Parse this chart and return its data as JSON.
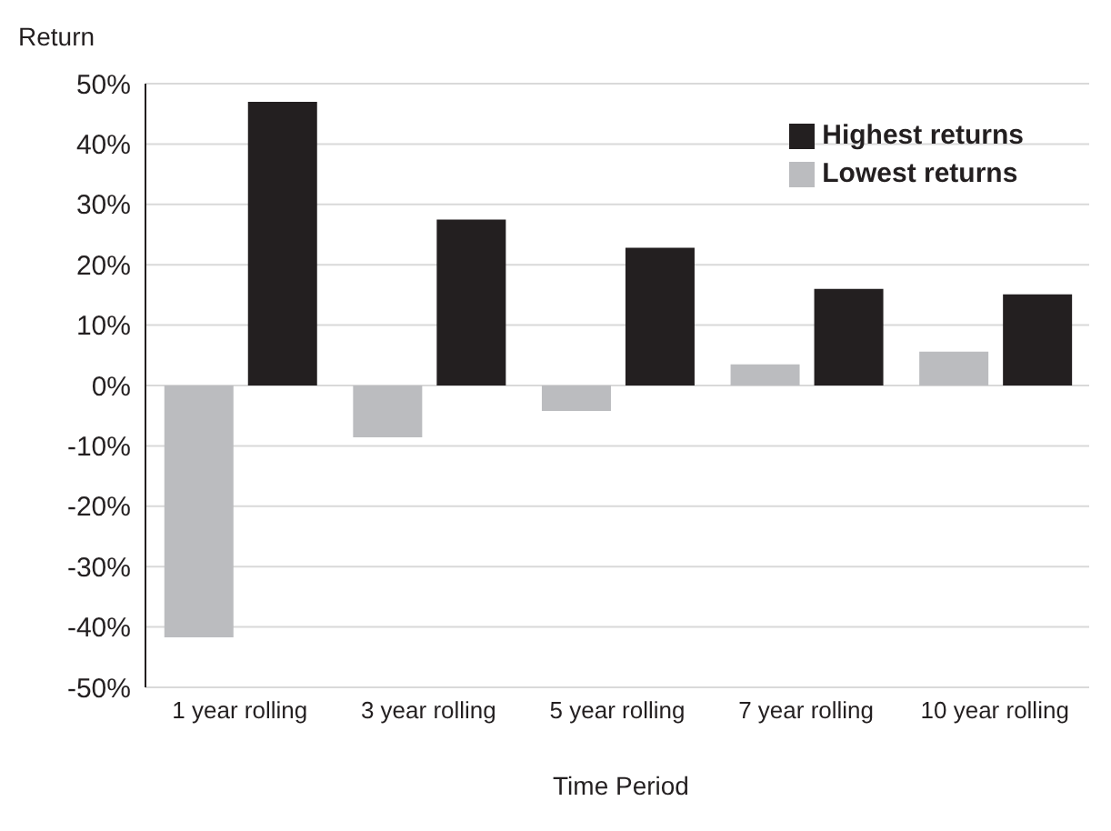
{
  "chart_data": {
    "type": "bar",
    "ylabel": "Return",
    "xlabel": "Time Period",
    "categories": [
      "1 year rolling",
      "3 year rolling",
      "5 year rolling",
      "7 year rolling",
      "10 year rolling"
    ],
    "series": [
      {
        "name": "Highest returns",
        "color": "#231f20",
        "values": [
          47,
          27.5,
          22.8,
          16,
          15.1
        ]
      },
      {
        "name": "Lowest returns",
        "color": "#bbbcbf",
        "values": [
          -41.7,
          -8.6,
          -4.2,
          3.5,
          5.6
        ]
      }
    ],
    "ylim": [
      -50,
      50
    ],
    "yticks": [
      {
        "value": -50,
        "label": "-50%"
      },
      {
        "value": -40,
        "label": "-40%"
      },
      {
        "value": -30,
        "label": "-30%"
      },
      {
        "value": -20,
        "label": "-20%"
      },
      {
        "value": -10,
        "label": "-10%"
      },
      {
        "value": 0,
        "label": "0%"
      },
      {
        "value": 10,
        "label": "10%"
      },
      {
        "value": 20,
        "label": "20%"
      },
      {
        "value": 30,
        "label": "30%"
      },
      {
        "value": 40,
        "label": "40%"
      },
      {
        "value": 50,
        "label": "50%"
      }
    ],
    "grid": "y",
    "legend": "top right"
  }
}
